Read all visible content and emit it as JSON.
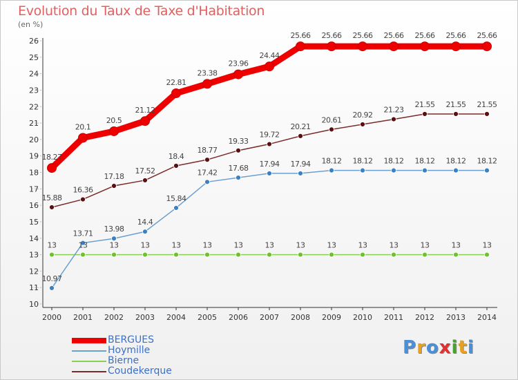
{
  "title": "Evolution du Taux de Taxe d'Habitation",
  "subtitle": "(en %)",
  "logo": {
    "letters": [
      "P",
      "r",
      "o",
      "x",
      "i",
      "t",
      "i"
    ],
    "colors": [
      "#4a90d9",
      "#e8a020",
      "#4a90d9",
      "#e03030",
      "#4aa030",
      "#e8a020",
      "#4a90d9"
    ]
  },
  "chart_data": {
    "type": "line",
    "x": [
      "2000",
      "2001",
      "2002",
      "2003",
      "2004",
      "2005",
      "2006",
      "2007",
      "2008",
      "2009",
      "2010",
      "2011",
      "2012",
      "2013",
      "2014"
    ],
    "yticks": [
      "10",
      "11",
      "12",
      "13",
      "14",
      "15",
      "16",
      "17",
      "18",
      "19",
      "20",
      "21",
      "22",
      "23",
      "24",
      "25",
      "26"
    ],
    "ylim": [
      10,
      26
    ],
    "grid": "dashed-y-left",
    "legend": "bottom-left",
    "series": [
      {
        "name": "BERGUES",
        "color": "#ee0000",
        "values": [
          18.27,
          20.1,
          20.5,
          21.12,
          22.81,
          23.38,
          23.96,
          24.44,
          25.66,
          25.66,
          25.66,
          25.66,
          25.66,
          25.66,
          25.66
        ],
        "labels": [
          "18.27",
          "20.1",
          "20.5",
          "21.12",
          "22.81",
          "23.38",
          "23.96",
          "24.44",
          "25.66",
          "25.66",
          "25.66",
          "25.66",
          "25.66",
          "25.66",
          "25.66"
        ]
      },
      {
        "name": "Hoymille",
        "color": "#6aa0d0",
        "marker": "#3d80c0",
        "values": [
          10.97,
          13.71,
          13.98,
          14.4,
          15.84,
          17.42,
          17.68,
          17.94,
          17.94,
          18.12,
          18.12,
          18.12,
          18.12,
          18.12,
          18.12
        ],
        "labels": [
          "10.97",
          "13.71",
          "13.98",
          "14.4",
          "15.84",
          "17.42",
          "17.68",
          "17.94",
          "17.94",
          "18.12",
          "18.12",
          "18.12",
          "18.12",
          "18.12",
          "18.12"
        ]
      },
      {
        "name": "Bierne",
        "color": "#88d050",
        "marker": "#70c030",
        "values": [
          13,
          13,
          13,
          13,
          13,
          13,
          13,
          13,
          13,
          13,
          13,
          13,
          13,
          13,
          13
        ],
        "labels": [
          "13",
          "13",
          "13",
          "13",
          "13",
          "13",
          "13",
          "13",
          "13",
          "13",
          "13",
          "13",
          "13",
          "13",
          "13"
        ]
      },
      {
        "name": "Coudekerque",
        "color": "#7a2a2a",
        "marker": "#5a1010",
        "values": [
          15.88,
          16.36,
          17.18,
          17.52,
          18.4,
          18.77,
          19.33,
          19.72,
          20.21,
          20.61,
          20.92,
          21.23,
          21.55,
          21.55,
          21.55
        ],
        "labels": [
          "15.88",
          "16.36",
          "17.18",
          "17.52",
          "18.4",
          "18.77",
          "19.33",
          "19.72",
          "20.21",
          "20.61",
          "20.92",
          "21.23",
          "21.55",
          "21.55",
          "21.55"
        ]
      }
    ]
  }
}
